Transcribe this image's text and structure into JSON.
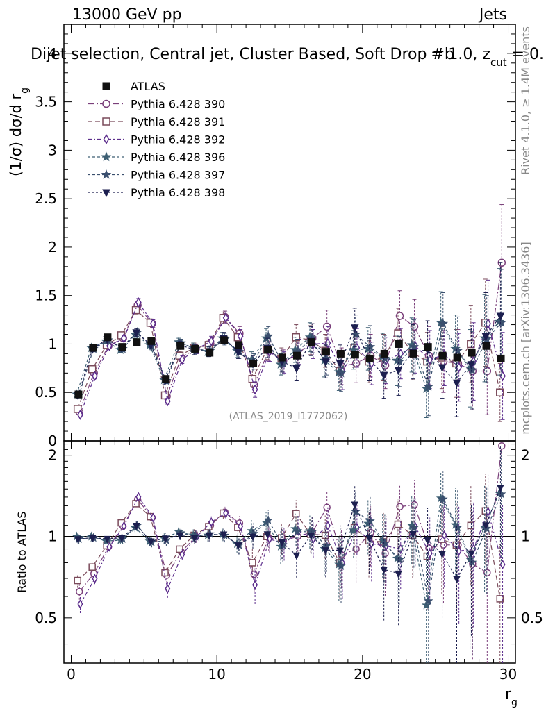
{
  "header": {
    "energy_label": "13000 GeV pp",
    "category_label": "Jets",
    "plot_title": "Dijet selection, Central jet, Cluster Based, Soft Drop #b",
    "title_extra": "= 1.0, z",
    "title_extra_sub": "cut",
    "title_extra_tail": " = 0.",
    "analysis_id": "(ATLAS_2019_I1772062)",
    "side_label_rivet": "Rivet 4.1.0, ≥ 1.4M events",
    "side_label_mcplots": "mcplots.cern.ch [arXiv:1306.3436]"
  },
  "chart_data": {
    "type": "scatter",
    "main_panel": {
      "ylabel": "(1/σ) dσ/d r",
      "ylabel_sub": "g",
      "ylim": [
        0,
        4.3
      ],
      "yticks": [
        0,
        0.5,
        1,
        1.5,
        2,
        2.5,
        3,
        3.5,
        4
      ],
      "ytick_labels": [
        "0",
        "0.5",
        "1",
        "1.5",
        "2",
        "2.5",
        "3",
        "3.5",
        "4"
      ]
    },
    "ratio_panel": {
      "ylabel": "Ratio to ATLAS",
      "ylim": [
        0.34,
        2.26
      ],
      "yticks": [
        0.5,
        1,
        2
      ],
      "ytick_labels": [
        "0.5",
        "1",
        "2"
      ],
      "reference_line": 1
    },
    "x_axis": {
      "xlabel": "r",
      "xlabel_sub": "g",
      "xlim": [
        -0.5,
        30.5
      ],
      "xticks": [
        0,
        10,
        20,
        30
      ],
      "xtick_labels": [
        "0",
        "10",
        "20",
        "30"
      ]
    },
    "x": [
      0.5,
      1.5,
      2.5,
      3.5,
      4.5,
      5.5,
      6.5,
      7.5,
      8.5,
      9.5,
      10.5,
      11.5,
      12.5,
      13.5,
      14.5,
      15.5,
      16.5,
      17.5,
      18.5,
      19.5,
      20.5,
      21.5,
      22.5,
      23.5,
      24.5,
      25.5,
      26.5,
      27.5,
      28.5,
      29.5
    ],
    "reference": {
      "name": "ATLAS",
      "values": [
        0.48,
        0.96,
        1.07,
        0.97,
        1.02,
        1.03,
        0.64,
        0.98,
        0.95,
        0.91,
        1.04,
        0.99,
        0.8,
        0.94,
        0.86,
        0.88,
        1.02,
        0.92,
        0.9,
        0.89,
        0.85,
        0.9,
        1.0,
        0.9,
        0.97,
        0.88,
        0.86,
        0.91,
        0.98,
        0.85
      ]
    },
    "series": [
      {
        "name": "Pythia 6.428 390",
        "color": "#7a3f7a",
        "marker": "circle",
        "values": [
          0.3,
          0.7,
          0.98,
          1.06,
          1.4,
          1.21,
          0.46,
          0.86,
          0.95,
          1.0,
          1.28,
          1.11,
          0.58,
          0.93,
          0.83,
          0.88,
          1.06,
          1.18,
          0.77,
          0.8,
          0.88,
          0.78,
          1.29,
          1.18,
          0.88,
          0.82,
          0.8,
          0.72,
          0.72,
          1.84
        ],
        "errors": [
          0.02,
          0.03,
          0.03,
          0.03,
          0.04,
          0.04,
          0.03,
          0.04,
          0.05,
          0.05,
          0.06,
          0.07,
          0.08,
          0.1,
          0.11,
          0.13,
          0.15,
          0.17,
          0.19,
          0.2,
          0.22,
          0.24,
          0.26,
          0.28,
          0.3,
          0.32,
          0.35,
          0.4,
          0.45,
          0.6
        ]
      },
      {
        "name": "Pythia 6.428 391",
        "color": "#7a4a5a",
        "marker": "square",
        "values": [
          0.33,
          0.74,
          0.99,
          1.09,
          1.35,
          1.22,
          0.47,
          0.88,
          0.96,
          0.99,
          1.27,
          1.07,
          0.64,
          0.94,
          0.85,
          1.07,
          1.04,
          0.93,
          0.72,
          0.96,
          0.82,
          0.86,
          1.11,
          0.91,
          0.82,
          0.86,
          0.8,
          1.0,
          1.22,
          0.5
        ],
        "errors": [
          0.02,
          0.03,
          0.03,
          0.03,
          0.04,
          0.04,
          0.03,
          0.04,
          0.05,
          0.05,
          0.06,
          0.07,
          0.08,
          0.1,
          0.11,
          0.13,
          0.15,
          0.17,
          0.19,
          0.2,
          0.22,
          0.24,
          0.26,
          0.28,
          0.3,
          0.32,
          0.35,
          0.4,
          0.45,
          0.3
        ]
      },
      {
        "name": "Pythia 6.428 392",
        "color": "#5c2d8c",
        "marker": "diamond",
        "values": [
          0.27,
          0.67,
          0.98,
          1.06,
          1.43,
          1.21,
          0.41,
          0.84,
          0.95,
          1.03,
          1.27,
          1.08,
          0.53,
          0.92,
          0.81,
          0.92,
          1.0,
          1.01,
          0.72,
          0.96,
          0.8,
          0.83,
          0.9,
          0.98,
          0.84,
          0.89,
          0.76,
          0.82,
          1.21,
          0.67
        ],
        "errors": [
          0.02,
          0.03,
          0.03,
          0.03,
          0.04,
          0.04,
          0.03,
          0.04,
          0.05,
          0.05,
          0.06,
          0.07,
          0.08,
          0.1,
          0.11,
          0.13,
          0.15,
          0.17,
          0.19,
          0.2,
          0.22,
          0.24,
          0.26,
          0.28,
          0.3,
          0.32,
          0.35,
          0.4,
          0.45,
          0.45
        ]
      },
      {
        "name": "Pythia 6.428 396",
        "color": "#3d5f73",
        "marker": "star",
        "values": [
          0.48,
          0.96,
          1.03,
          0.94,
          1.1,
          0.99,
          0.63,
          1.02,
          0.96,
          0.92,
          1.06,
          0.93,
          0.84,
          1.06,
          0.79,
          0.94,
          1.07,
          0.83,
          0.71,
          0.94,
          0.95,
          0.87,
          0.83,
          0.99,
          0.54,
          1.22,
          0.95,
          0.75,
          1.06,
          1.23
        ],
        "errors": [
          0.02,
          0.03,
          0.03,
          0.03,
          0.04,
          0.04,
          0.03,
          0.04,
          0.05,
          0.05,
          0.06,
          0.07,
          0.08,
          0.1,
          0.11,
          0.13,
          0.15,
          0.17,
          0.19,
          0.2,
          0.22,
          0.24,
          0.26,
          0.28,
          0.3,
          0.32,
          0.35,
          0.4,
          0.45,
          0.55
        ]
      },
      {
        "name": "Pythia 6.428 397",
        "color": "#3a4f6e",
        "marker": "star",
        "values": [
          0.47,
          0.95,
          1.04,
          0.95,
          1.12,
          0.98,
          0.62,
          1.01,
          0.95,
          0.93,
          1.05,
          0.92,
          0.82,
          1.08,
          0.8,
          0.92,
          1.06,
          0.85,
          0.7,
          1.1,
          0.97,
          0.85,
          0.82,
          0.97,
          0.56,
          1.21,
          0.93,
          0.73,
          1.05,
          1.22
        ],
        "errors": [
          0.02,
          0.03,
          0.03,
          0.03,
          0.04,
          0.04,
          0.03,
          0.04,
          0.05,
          0.05,
          0.06,
          0.07,
          0.08,
          0.1,
          0.11,
          0.13,
          0.15,
          0.17,
          0.19,
          0.2,
          0.22,
          0.24,
          0.26,
          0.28,
          0.3,
          0.32,
          0.35,
          0.4,
          0.45,
          0.55
        ]
      },
      {
        "name": "Pythia 6.428 398",
        "color": "#1c1f4f",
        "marker": "triangle-down",
        "values": [
          0.47,
          0.95,
          1.05,
          0.96,
          1.12,
          0.99,
          0.63,
          0.99,
          0.94,
          0.92,
          1.06,
          0.92,
          0.8,
          0.96,
          0.82,
          0.75,
          1.03,
          0.82,
          0.8,
          1.17,
          0.84,
          0.68,
          0.73,
          0.92,
          0.94,
          0.76,
          0.6,
          0.79,
          1.08,
          1.29
        ],
        "errors": [
          0.02,
          0.03,
          0.03,
          0.03,
          0.04,
          0.04,
          0.03,
          0.04,
          0.05,
          0.05,
          0.06,
          0.07,
          0.08,
          0.1,
          0.11,
          0.13,
          0.15,
          0.17,
          0.19,
          0.2,
          0.22,
          0.24,
          0.26,
          0.28,
          0.3,
          0.32,
          0.35,
          0.4,
          0.45,
          0.55
        ]
      }
    ]
  }
}
